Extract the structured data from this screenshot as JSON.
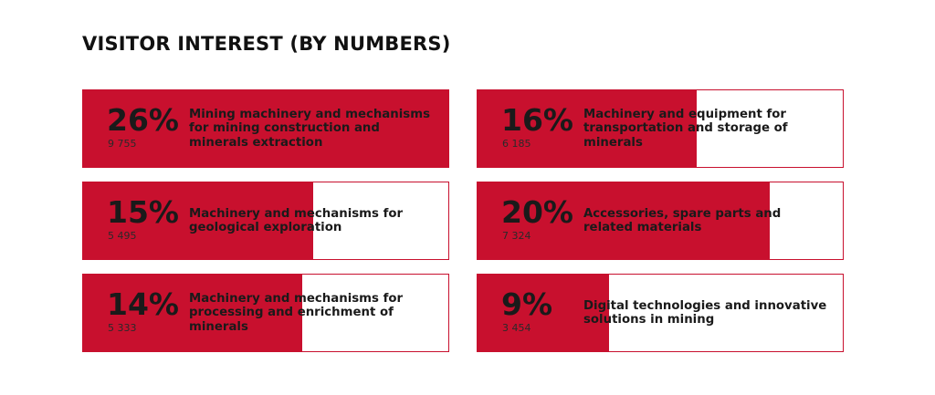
{
  "title": "VISITOR INTEREST (BY NUMBERS)",
  "colors": {
    "accent": "#c8102e",
    "background": "#ffffff",
    "text": "#1a1a1a"
  },
  "chart_data": {
    "type": "bar",
    "title": "VISITOR INTEREST (BY NUMBERS)",
    "categories": [
      "Mining machinery and mechanisms for mining construction and minerals extraction",
      "Machinery and equipment for transportation and storage of minerals",
      "Machinery and mechanisms for geological exploration",
      "Accessories, spare parts and related materials",
      "Machinery and mechanisms for processing and enrichment of minerals",
      "Digital technologies and innovative solutions in mining"
    ],
    "values": [
      26,
      16,
      15,
      20,
      14,
      9
    ],
    "ylim": [
      0,
      100
    ],
    "items": [
      {
        "percent": "26%",
        "count": "9 755",
        "label": "Mining machinery and mechanisms for mining construction and minerals extraction",
        "share": 100
      },
      {
        "percent": "16%",
        "count": "6 185",
        "label": "Machinery and equipment for transportation and storage of minerals",
        "share": 60
      },
      {
        "percent": "15%",
        "count": "5 495",
        "label": "Machinery and mechanisms for geological exploration",
        "share": 63
      },
      {
        "percent": "20%",
        "count": "7 324",
        "label": "Accessories, spare parts and related materials",
        "share": 80
      },
      {
        "percent": "14%",
        "count": "5 333",
        "label": "Machinery and mechanisms for processing and enrichment of minerals",
        "share": 60
      },
      {
        "percent": "9%",
        "count": "3 454",
        "label": "Digital technologies and innovative solutions in mining",
        "share": 36
      }
    ]
  }
}
